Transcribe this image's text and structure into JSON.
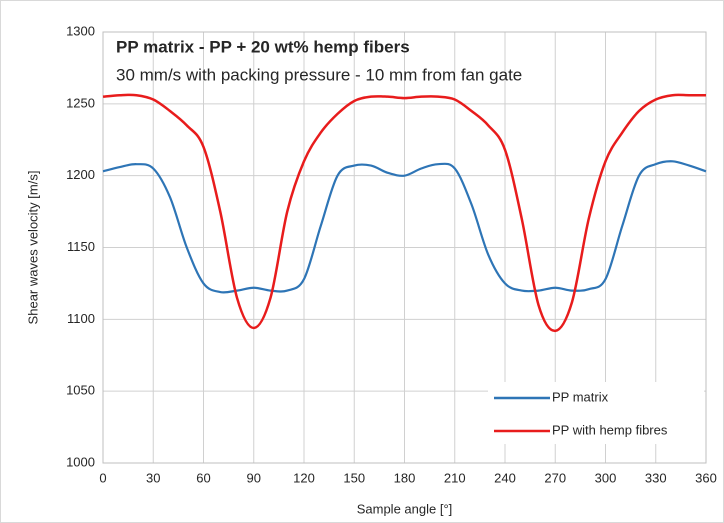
{
  "chart_data": {
    "type": "line",
    "title": "PP matrix - PP + 20 wt% hemp fibers",
    "subtitle": "30 mm/s with packing pressure - 10 mm from fan gate",
    "x_label": "Sample angle [°]",
    "y_label": "Shear waves velocity [m/s]",
    "x": [
      0,
      10,
      20,
      30,
      40,
      50,
      60,
      70,
      80,
      90,
      100,
      110,
      120,
      130,
      140,
      150,
      160,
      170,
      180,
      190,
      200,
      210,
      220,
      230,
      240,
      250,
      260,
      270,
      280,
      290,
      300,
      310,
      320,
      330,
      340,
      350,
      360
    ],
    "series": [
      {
        "name": "PP matrix",
        "color": "#2e75b6",
        "values": [
          1203,
          1206,
          1208,
          1205,
          1185,
          1150,
          1125,
          1119,
          1120,
          1122,
          1120,
          1120,
          1128,
          1165,
          1200,
          1207,
          1207,
          1202,
          1200,
          1205,
          1208,
          1205,
          1180,
          1145,
          1125,
          1120,
          1120,
          1122,
          1120,
          1121,
          1128,
          1165,
          1200,
          1208,
          1210,
          1207,
          1203
        ]
      },
      {
        "name": "PP with hemp fibres",
        "color": "#e81c1c",
        "values": [
          1255,
          1256,
          1256,
          1253,
          1245,
          1235,
          1220,
          1175,
          1115,
          1094,
          1115,
          1175,
          1210,
          1230,
          1243,
          1252,
          1255,
          1255,
          1254,
          1255,
          1255,
          1253,
          1245,
          1235,
          1218,
          1170,
          1110,
          1092,
          1112,
          1170,
          1210,
          1230,
          1245,
          1253,
          1256,
          1256,
          1256
        ]
      }
    ],
    "xlim": [
      0,
      360
    ],
    "xticks": [
      0,
      30,
      60,
      90,
      120,
      150,
      180,
      210,
      240,
      270,
      300,
      330,
      360
    ],
    "ylim": [
      1000,
      1300
    ],
    "yticks": [
      1000,
      1050,
      1100,
      1150,
      1200,
      1250,
      1300
    ],
    "grid": true,
    "legend": "lower right"
  }
}
